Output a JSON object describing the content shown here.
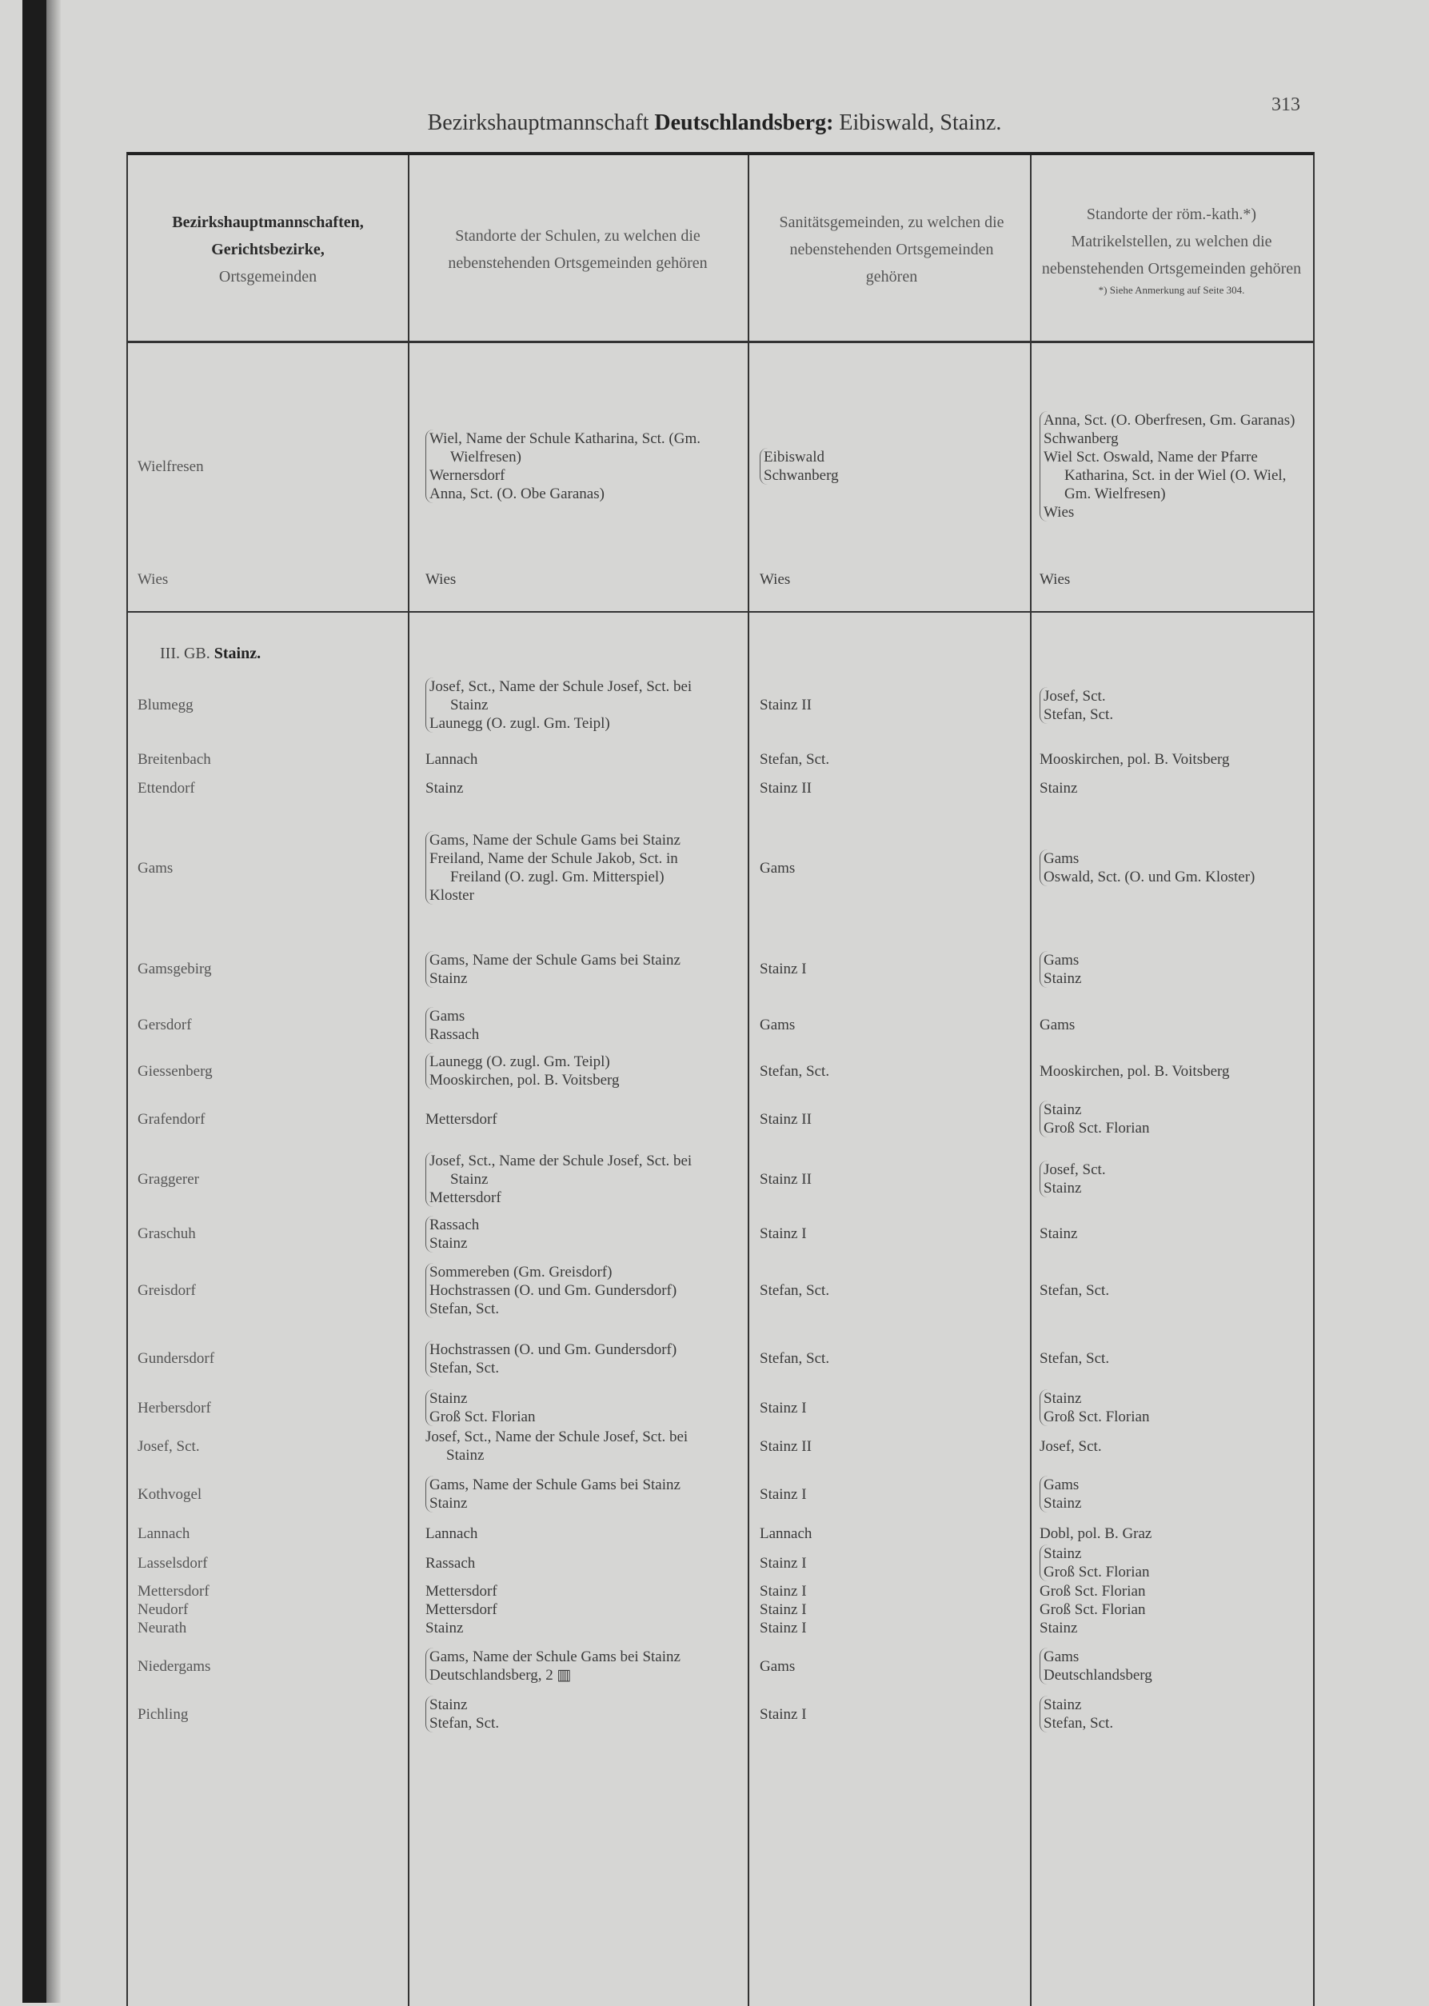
{
  "page": {
    "title_prefix": "Bezirkshauptmannschaft ",
    "title_bold": "Deutschlandsberg:",
    "title_suffix": " Eibiswald, Stainz.",
    "page_number": "313"
  },
  "header": {
    "col1_bold1": "Bezirkshauptmannschaften,",
    "col1_bold2": "Gerichtsbezirke,",
    "col1_line3": "Ortsgemeinden",
    "col2": "Standorte der Schulen, zu welchen die nebenstehenden Ortsgemeinden gehören",
    "col3": "Sanitätsgemeinden, zu welchen die nebenstehenden Ortsgemeinden gehören",
    "col4": "Standorte der röm.-kath.*) Matrikelstellen, zu welchen die nebenstehenden Ortsgemeinden gehören",
    "col4_note": "*) Siehe Anmerkung auf Seite 304."
  },
  "section": {
    "prefix": "III. GB. ",
    "name": "Stainz."
  },
  "rows": [
    {
      "name": "Wielfresen",
      "school": [
        "Wiel, Name der Schule Katharina, Sct. (Gm. Wielfresen)",
        "Wernersdorf",
        "Anna, Sct. (O. Obe Garanas)"
      ],
      "sanitary": [
        "Eibiswald",
        "Schwanberg"
      ],
      "matrikel": [
        "Anna, Sct. (O. Oberfresen, Gm. Garanas)",
        "Schwanberg",
        "Wiel Sct. Oswald, Name der Pfarre Katharina, Sct. in der Wiel (O. Wiel, Gm. Wielfresen)",
        "Wies"
      ]
    },
    {
      "name": "Wies",
      "school": [
        "Wies"
      ],
      "sanitary": [
        "Wies"
      ],
      "matrikel": [
        "Wies"
      ]
    },
    {
      "name": "Blumegg",
      "school": [
        "Josef, Sct., Name der Schule Josef, Sct. bei Stainz",
        "Launegg (O. zugl. Gm. Teipl)"
      ],
      "sanitary": [
        "Stainz II"
      ],
      "matrikel": [
        "Josef, Sct.",
        "Stefan, Sct."
      ]
    },
    {
      "name": "Breitenbach",
      "school": [
        "Lannach"
      ],
      "sanitary": [
        "Stefan, Sct."
      ],
      "matrikel": [
        "Mooskirchen, pol. B. Voitsberg"
      ]
    },
    {
      "name": "Ettendorf",
      "school": [
        "Stainz"
      ],
      "sanitary": [
        "Stainz II"
      ],
      "matrikel": [
        "Stainz"
      ]
    },
    {
      "name": "Gams",
      "school": [
        "Gams, Name der Schule Gams bei Stainz",
        "Freiland, Name der Schule Jakob, Sct. in Freiland (O. zugl. Gm. Mitterspiel)",
        "Kloster"
      ],
      "sanitary": [
        "Gams"
      ],
      "matrikel": [
        "Gams",
        "Oswald, Sct. (O. und Gm. Kloster)"
      ]
    },
    {
      "name": "Gamsgebirg",
      "school": [
        "Gams, Name der Schule Gams bei Stainz",
        "Stainz"
      ],
      "sanitary": [
        "Stainz I"
      ],
      "matrikel": [
        "Gams",
        "Stainz"
      ]
    },
    {
      "name": "Gersdorf",
      "school": [
        "Gams",
        "Rassach"
      ],
      "sanitary": [
        "Gams"
      ],
      "matrikel": [
        "Gams"
      ]
    },
    {
      "name": "Giessenberg",
      "school": [
        "Launegg (O. zugl. Gm. Teipl)",
        "Mooskirchen, pol. B. Voitsberg"
      ],
      "sanitary": [
        "Stefan, Sct."
      ],
      "matrikel": [
        "Mooskirchen, pol. B. Voitsberg"
      ]
    },
    {
      "name": "Grafendorf",
      "school": [
        "Mettersdorf"
      ],
      "sanitary": [
        "Stainz II"
      ],
      "matrikel": [
        "Stainz",
        "Groß Sct. Florian"
      ]
    },
    {
      "name": "Graggerer",
      "school": [
        "Josef, Sct., Name der Schule Josef, Sct. bei Stainz",
        "Mettersdorf"
      ],
      "sanitary": [
        "Stainz II"
      ],
      "matrikel": [
        "Josef, Sct.",
        "Stainz"
      ]
    },
    {
      "name": "Graschuh",
      "school": [
        "Rassach",
        "Stainz"
      ],
      "sanitary": [
        "Stainz I"
      ],
      "matrikel": [
        "Stainz"
      ]
    },
    {
      "name": "Greisdorf",
      "school": [
        "Sommereben (Gm. Greisdorf)",
        "Hochstrassen (O. und Gm. Gundersdorf)",
        "Stefan, Sct."
      ],
      "sanitary": [
        "Stefan, Sct."
      ],
      "matrikel": [
        "Stefan, Sct."
      ]
    },
    {
      "name": "Gundersdorf",
      "school": [
        "Hochstrassen (O. und Gm. Gundersdorf)",
        "Stefan, Sct."
      ],
      "sanitary": [
        "Stefan, Sct."
      ],
      "matrikel": [
        "Stefan, Sct."
      ]
    },
    {
      "name": "Herbersdorf",
      "school": [
        "Stainz",
        "Groß Sct. Florian"
      ],
      "sanitary": [
        "Stainz I"
      ],
      "matrikel": [
        "Stainz",
        "Groß Sct. Florian"
      ]
    },
    {
      "name": "Josef, Sct.",
      "school": [
        "Josef, Sct., Name der Schule Josef, Sct. bei Stainz"
      ],
      "sanitary": [
        "Stainz II"
      ],
      "matrikel": [
        "Josef, Sct."
      ]
    },
    {
      "name": "Kothvogel",
      "school": [
        "Gams, Name der Schule Gams bei Stainz",
        "Stainz"
      ],
      "sanitary": [
        "Stainz I"
      ],
      "matrikel": [
        "Gams",
        "Stainz"
      ]
    },
    {
      "name": "Lannach",
      "school": [
        "Lannach"
      ],
      "sanitary": [
        "Lannach"
      ],
      "matrikel": [
        "Dobl, pol. B. Graz"
      ]
    },
    {
      "name": "Lasselsdorf",
      "school": [
        "Rassach"
      ],
      "sanitary": [
        "Stainz I"
      ],
      "matrikel": [
        "Stainz",
        "Groß Sct. Florian"
      ]
    },
    {
      "name": "Mettersdorf",
      "school": [
        "Mettersdorf"
      ],
      "sanitary": [
        "Stainz I"
      ],
      "matrikel": [
        "Groß Sct. Florian"
      ]
    },
    {
      "name": "Neudorf",
      "school": [
        "Mettersdorf"
      ],
      "sanitary": [
        "Stainz I"
      ],
      "matrikel": [
        "Groß Sct. Florian"
      ]
    },
    {
      "name": "Neurath",
      "school": [
        "Stainz"
      ],
      "sanitary": [
        "Stainz I"
      ],
      "matrikel": [
        "Stainz"
      ]
    },
    {
      "name": "Niedergams",
      "school": [
        "Gams, Name der Schule Gams bei Stainz",
        "Deutschlandsberg, 2 ▥"
      ],
      "sanitary": [
        "Gams"
      ],
      "matrikel": [
        "Gams",
        "Deutschlandsberg"
      ]
    },
    {
      "name": "Pichling",
      "school": [
        "Stainz",
        "Stefan, Sct."
      ],
      "sanitary": [
        "Stainz I"
      ],
      "matrikel": [
        "Stainz",
        "Stefan, Sct."
      ]
    }
  ]
}
